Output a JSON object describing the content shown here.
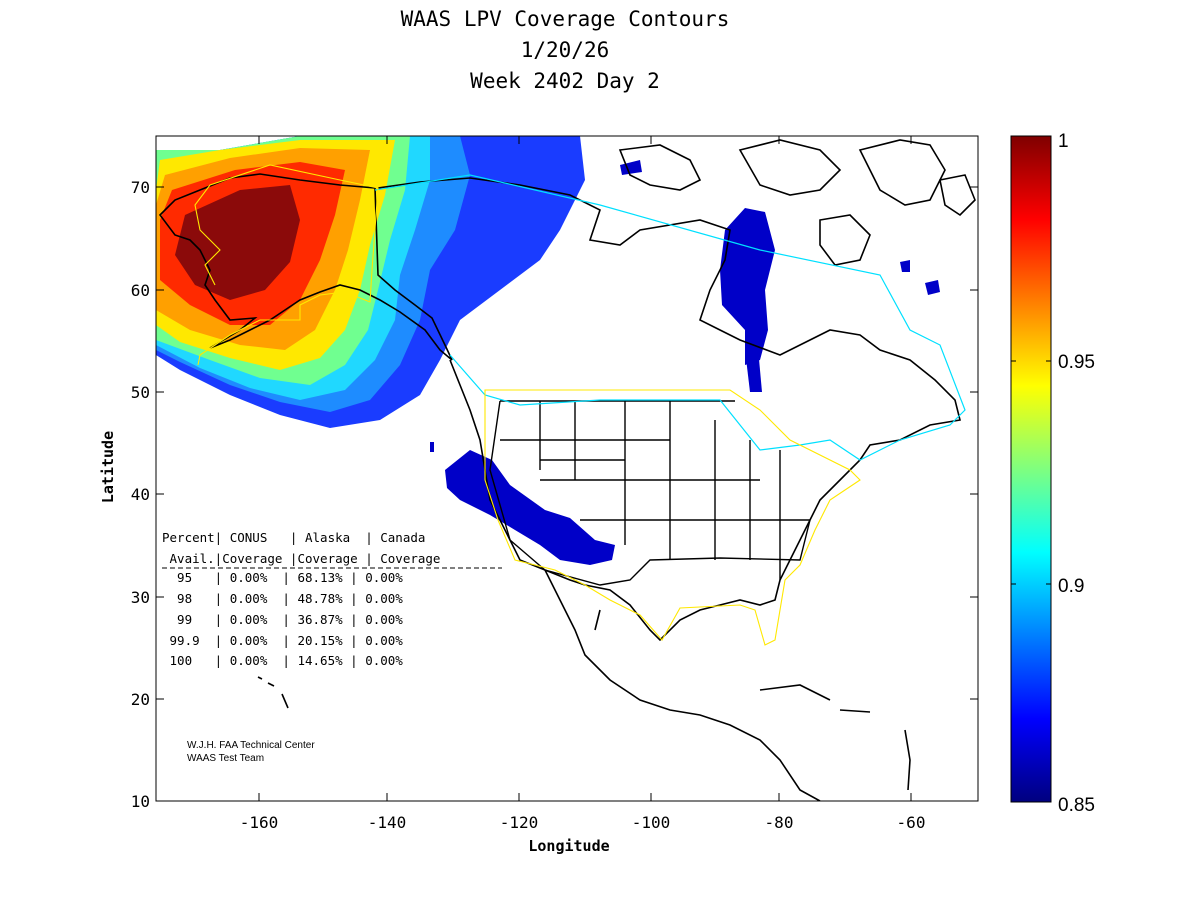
{
  "title": {
    "line1": "WAAS LPV Coverage Contours",
    "line2": "1/20/26",
    "line3": "Week 2402 Day 2"
  },
  "axes": {
    "xlabel": "Longitude",
    "ylabel": "Latitude",
    "xlim": [
      -175,
      -50
    ],
    "ylim": [
      10,
      75
    ],
    "xticks": [
      "-160",
      "-140",
      "-120",
      "-100",
      "-80",
      "-60"
    ],
    "yticks": [
      "10",
      "20",
      "30",
      "40",
      "50",
      "60",
      "70"
    ]
  },
  "colorbar": {
    "range": [
      0.85,
      1
    ],
    "ticks": [
      "0.85",
      "0.9",
      "0.95",
      "1"
    ],
    "colormap": "jet"
  },
  "stats_table": {
    "header1": "Percent| CONUS   | Alaska  | Canada",
    "header2": " Avail.|Coverage |Coverage | Coverage",
    "divider": "---------------------------------------",
    "rows": [
      "  95   | 0.00%  | 68.13% | 0.00%",
      "  98   | 0.00%  | 48.78% | 0.00%",
      "  99   | 0.00%  | 36.87% | 0.00%",
      " 99.9  | 0.00%  | 20.15% | 0.00%",
      " 100   | 0.00%  | 14.65% | 0.00%"
    ]
  },
  "credit": {
    "line1": "W.J.H. FAA Technical Center",
    "line2": "WAAS Test Team"
  },
  "chart_data": {
    "type": "heatmap",
    "title": "WAAS LPV Coverage Contours",
    "subtitle": "1/20/26 Week 2402 Day 2",
    "xlabel": "Longitude",
    "ylabel": "Latitude",
    "xlim": [
      -175,
      -50
    ],
    "ylim": [
      10,
      75
    ],
    "color_range": [
      0.85,
      1
    ],
    "regions": [
      {
        "location": "Alaska core",
        "value_range": [
          0.98,
          1.0
        ]
      },
      {
        "location": "Alaska outer",
        "value_range": [
          0.93,
          0.97
        ]
      },
      {
        "location": "Yukon / NW Canada",
        "value_range": [
          0.86,
          0.92
        ]
      },
      {
        "location": "Hudson Bay area",
        "value_range": [
          0.85,
          0.86
        ]
      },
      {
        "location": "US Southwest",
        "value_range": [
          0.85,
          0.86
        ]
      }
    ],
    "stats": {
      "columns": [
        "Percent Avail.",
        "CONUS Coverage",
        "Alaska Coverage",
        "Canada Coverage"
      ],
      "rows": [
        [
          "95",
          "0.00%",
          "68.13%",
          "0.00%"
        ],
        [
          "98",
          "0.00%",
          "48.78%",
          "0.00%"
        ],
        [
          "99",
          "0.00%",
          "36.87%",
          "0.00%"
        ],
        [
          "99.9",
          "0.00%",
          "20.15%",
          "0.00%"
        ],
        [
          "100",
          "0.00%",
          "14.65%",
          "0.00%"
        ]
      ]
    }
  }
}
